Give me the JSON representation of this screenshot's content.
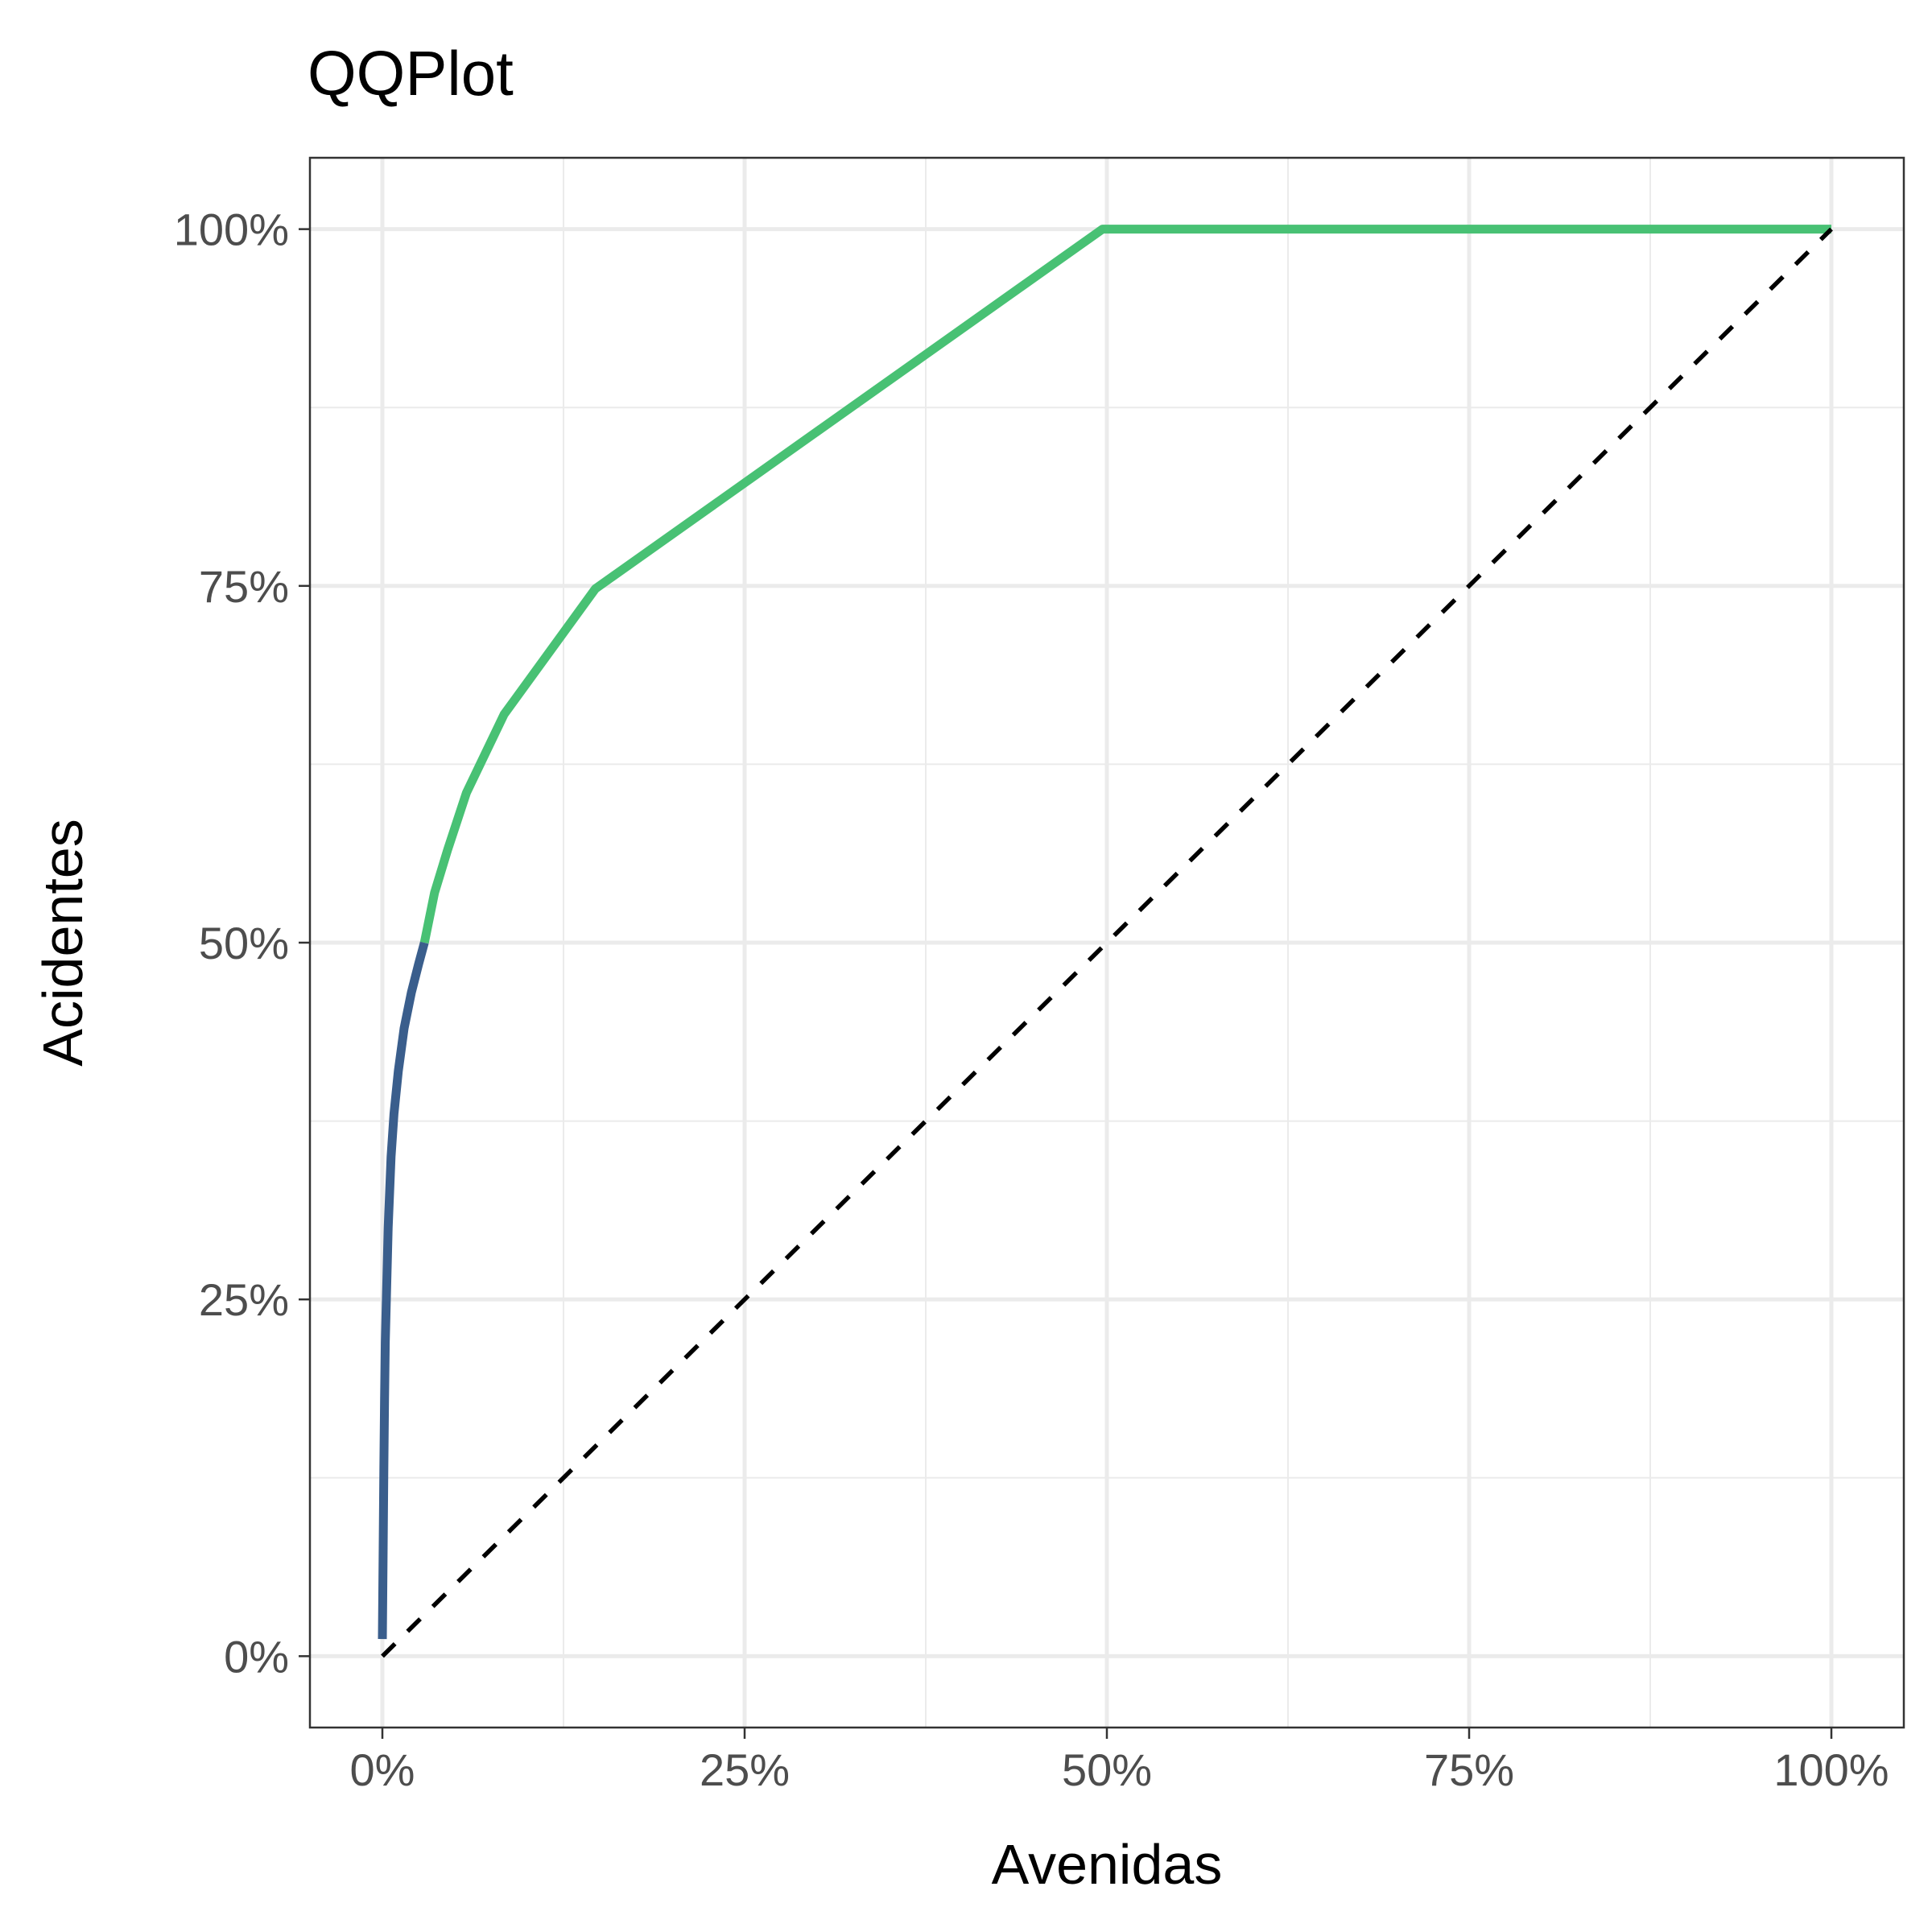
{
  "chart_data": {
    "type": "line",
    "title": "QQPlot",
    "xlabel": "Avenidas",
    "ylabel": "Acidentes",
    "xlim": [
      -0.05,
      1.05
    ],
    "ylim": [
      -0.05,
      1.05
    ],
    "x_ticks": [
      {
        "value": 0,
        "label": "0%"
      },
      {
        "value": 0.25,
        "label": "25%"
      },
      {
        "value": 0.5,
        "label": "50%"
      },
      {
        "value": 0.75,
        "label": "75%"
      },
      {
        "value": 1,
        "label": "100%"
      }
    ],
    "y_ticks": [
      {
        "value": 0,
        "label": "0%"
      },
      {
        "value": 0.25,
        "label": "25%"
      },
      {
        "value": 0.5,
        "label": "50%"
      },
      {
        "value": 0.75,
        "label": "75%"
      },
      {
        "value": 1,
        "label": "100%"
      }
    ],
    "grid": true,
    "legend": "none",
    "series": [
      {
        "color": "#3a5e8c",
        "points": [
          [
            0.0,
            0.012
          ],
          [
            0.0005,
            0.07
          ],
          [
            0.001,
            0.13
          ],
          [
            0.0015,
            0.18
          ],
          [
            0.002,
            0.22
          ],
          [
            0.003,
            0.26
          ],
          [
            0.004,
            0.3
          ],
          [
            0.006,
            0.35
          ],
          [
            0.008,
            0.38
          ],
          [
            0.011,
            0.41
          ],
          [
            0.015,
            0.44
          ],
          [
            0.02,
            0.465
          ],
          [
            0.025,
            0.485
          ],
          [
            0.029,
            0.5
          ]
        ]
      },
      {
        "color": "#48c174",
        "points": [
          [
            0.029,
            0.5
          ],
          [
            0.036,
            0.535
          ],
          [
            0.045,
            0.565
          ],
          [
            0.058,
            0.605
          ],
          [
            0.084,
            0.66
          ],
          [
            0.147,
            0.748
          ],
          [
            0.497,
            1.0
          ],
          [
            1.0,
            1.0
          ]
        ]
      },
      {
        "color": "#000000",
        "dashed": true,
        "points": [
          [
            0,
            0
          ],
          [
            1,
            1
          ]
        ]
      }
    ]
  }
}
